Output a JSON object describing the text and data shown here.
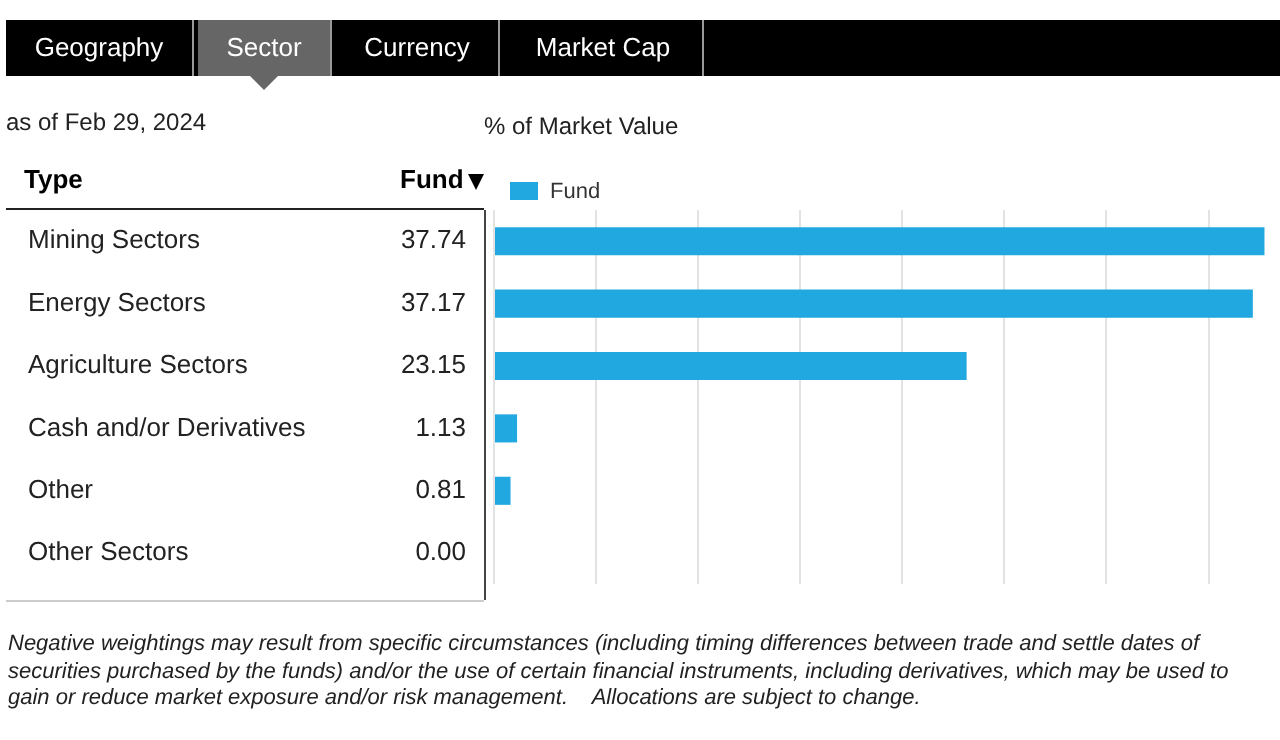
{
  "chart_data": {
    "type": "bar",
    "orientation": "horizontal",
    "title": "% of Market Value",
    "subtitle": "as of Feb 29, 2024",
    "ylabel": "Type",
    "annotations": [
      "Geography",
      "Sector",
      "Currency",
      "Market Cap",
      "Fund",
      "Negative weightings may result from specific circumstances (including timing differences between trade and settle dates of securities purchased by the funds) and/or the use of certain financial instruments, including derivatives, which may be used to gain or reduce market exposure and/or risk management.    Allocations are subject to change."
    ],
    "categories": [
      "Mining Sectors",
      "Energy Sectors",
      "Agriculture Sectors",
      "Cash and/or Derivatives",
      "Other",
      "Other Sectors"
    ],
    "series": [
      {
        "name": "Fund",
        "color": "#21a8e0",
        "values": [
          37.74,
          37.17,
          23.15,
          1.13,
          0.81,
          0.0
        ],
        "value_labels": [
          "37.74",
          "37.17",
          "23.15",
          "1.13",
          "0.81",
          "0.00"
        ]
      }
    ],
    "xlim": [
      0,
      38.5
    ],
    "xticks": [
      {
        "value": 0,
        "label": null
      },
      {
        "value": 5,
        "label": null
      },
      {
        "value": 10,
        "label": null
      },
      {
        "value": 15,
        "label": null
      },
      {
        "value": 20,
        "label": null
      },
      {
        "value": 25,
        "label": null
      },
      {
        "value": 30,
        "label": null
      },
      {
        "value": 35,
        "label": null
      }
    ],
    "grid": "x",
    "legend": "top left",
    "tick_labels": "y"
  }
}
